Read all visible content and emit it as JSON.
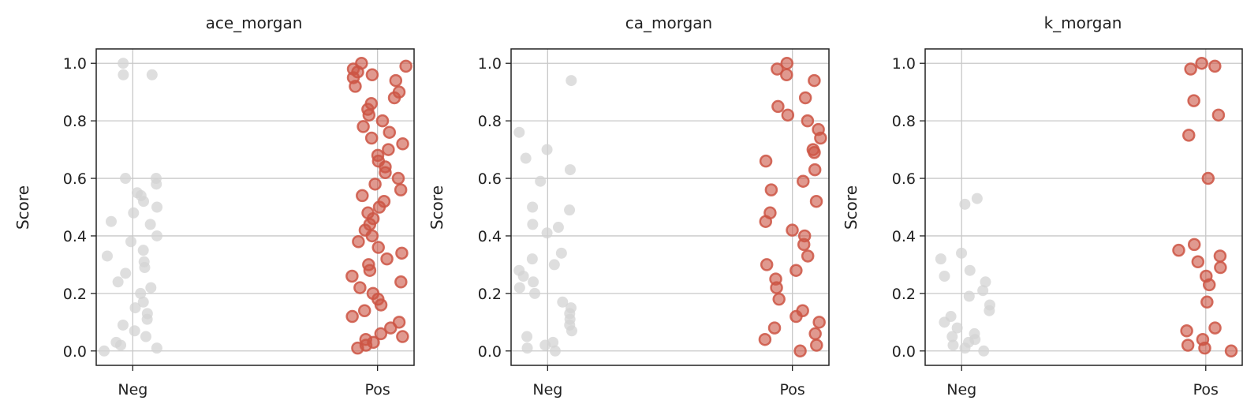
{
  "colors": {
    "neg": "#d3d3d3",
    "pos": "#cc5544",
    "grid": "#c8c8c8",
    "axis": "#222222"
  },
  "chart_data": [
    {
      "type": "scatter",
      "title": "ace_morgan",
      "ylabel": "Score",
      "categories": [
        "Neg",
        "Pos"
      ],
      "ylim": [
        -0.05,
        1.05
      ],
      "yticks": [
        "0.0",
        "0.2",
        "0.4",
        "0.6",
        "0.8",
        "1.0"
      ],
      "grid": true,
      "series": [
        {
          "values": [
            [
              0.0,
              0.0
            ],
            [
              0.0,
              0.01
            ],
            [
              0.0,
              0.02
            ],
            [
              0.0,
              0.03
            ],
            [
              0.0,
              0.05
            ],
            [
              0.0,
              0.07
            ],
            [
              0.0,
              0.09
            ],
            [
              0.0,
              0.11
            ],
            [
              0.0,
              0.13
            ],
            [
              0.0,
              0.15
            ],
            [
              0.0,
              0.17
            ],
            [
              0.0,
              0.2
            ],
            [
              0.0,
              0.22
            ],
            [
              0.0,
              0.24
            ],
            [
              0.0,
              0.27
            ],
            [
              0.0,
              0.29
            ],
            [
              0.0,
              0.31
            ],
            [
              0.0,
              0.33
            ],
            [
              0.0,
              0.35
            ],
            [
              0.0,
              0.38
            ],
            [
              0.0,
              0.4
            ],
            [
              0.0,
              0.44
            ],
            [
              0.0,
              0.45
            ],
            [
              0.0,
              0.48
            ],
            [
              0.0,
              0.5
            ],
            [
              0.0,
              0.52
            ],
            [
              0.0,
              0.54
            ],
            [
              0.0,
              0.55
            ],
            [
              0.0,
              0.58
            ],
            [
              0.0,
              0.6
            ],
            [
              0.0,
              0.6
            ],
            [
              0.0,
              0.96
            ],
            [
              0.0,
              0.96
            ],
            [
              0.0,
              1.0
            ]
          ]
        },
        {
          "values": [
            [
              1.0,
              0.01
            ],
            [
              1.0,
              0.02
            ],
            [
              1.0,
              0.03
            ],
            [
              1.0,
              0.04
            ],
            [
              1.0,
              0.05
            ],
            [
              1.0,
              0.06
            ],
            [
              1.0,
              0.08
            ],
            [
              1.0,
              0.1
            ],
            [
              1.0,
              0.12
            ],
            [
              1.0,
              0.14
            ],
            [
              1.0,
              0.16
            ],
            [
              1.0,
              0.18
            ],
            [
              1.0,
              0.2
            ],
            [
              1.0,
              0.22
            ],
            [
              1.0,
              0.24
            ],
            [
              1.0,
              0.26
            ],
            [
              1.0,
              0.28
            ],
            [
              1.0,
              0.3
            ],
            [
              1.0,
              0.32
            ],
            [
              1.0,
              0.34
            ],
            [
              1.0,
              0.36
            ],
            [
              1.0,
              0.38
            ],
            [
              1.0,
              0.4
            ],
            [
              1.0,
              0.42
            ],
            [
              1.0,
              0.44
            ],
            [
              1.0,
              0.46
            ],
            [
              1.0,
              0.48
            ],
            [
              1.0,
              0.5
            ],
            [
              1.0,
              0.52
            ],
            [
              1.0,
              0.54
            ],
            [
              1.0,
              0.56
            ],
            [
              1.0,
              0.58
            ],
            [
              1.0,
              0.6
            ],
            [
              1.0,
              0.62
            ],
            [
              1.0,
              0.64
            ],
            [
              1.0,
              0.66
            ],
            [
              1.0,
              0.68
            ],
            [
              1.0,
              0.7
            ],
            [
              1.0,
              0.72
            ],
            [
              1.0,
              0.74
            ],
            [
              1.0,
              0.76
            ],
            [
              1.0,
              0.78
            ],
            [
              1.0,
              0.8
            ],
            [
              1.0,
              0.82
            ],
            [
              1.0,
              0.84
            ],
            [
              1.0,
              0.86
            ],
            [
              1.0,
              0.88
            ],
            [
              1.0,
              0.9
            ],
            [
              1.0,
              0.92
            ],
            [
              1.0,
              0.94
            ],
            [
              1.0,
              0.95
            ],
            [
              1.0,
              0.96
            ],
            [
              1.0,
              0.97
            ],
            [
              1.0,
              0.98
            ],
            [
              1.0,
              0.99
            ],
            [
              1.0,
              1.0
            ]
          ]
        }
      ]
    },
    {
      "type": "scatter",
      "title": "ca_morgan",
      "ylabel": "Score",
      "categories": [
        "Neg",
        "Pos"
      ],
      "ylim": [
        -0.05,
        1.05
      ],
      "yticks": [
        "0.0",
        "0.2",
        "0.4",
        "0.6",
        "0.8",
        "1.0"
      ],
      "grid": true,
      "series": [
        {
          "values": [
            [
              0.0,
              0.0
            ],
            [
              0.0,
              0.01
            ],
            [
              0.0,
              0.02
            ],
            [
              0.0,
              0.03
            ],
            [
              0.0,
              0.05
            ],
            [
              0.0,
              0.07
            ],
            [
              0.0,
              0.09
            ],
            [
              0.0,
              0.11
            ],
            [
              0.0,
              0.13
            ],
            [
              0.0,
              0.15
            ],
            [
              0.0,
              0.17
            ],
            [
              0.0,
              0.2
            ],
            [
              0.0,
              0.22
            ],
            [
              0.0,
              0.24
            ],
            [
              0.0,
              0.26
            ],
            [
              0.0,
              0.28
            ],
            [
              0.0,
              0.3
            ],
            [
              0.0,
              0.32
            ],
            [
              0.0,
              0.34
            ],
            [
              0.0,
              0.41
            ],
            [
              0.0,
              0.43
            ],
            [
              0.0,
              0.44
            ],
            [
              0.0,
              0.49
            ],
            [
              0.0,
              0.5
            ],
            [
              0.0,
              0.59
            ],
            [
              0.0,
              0.63
            ],
            [
              0.0,
              0.67
            ],
            [
              0.0,
              0.7
            ],
            [
              0.0,
              0.76
            ],
            [
              0.0,
              0.94
            ]
          ]
        },
        {
          "values": [
            [
              1.0,
              0.0
            ],
            [
              1.0,
              0.02
            ],
            [
              1.0,
              0.04
            ],
            [
              1.0,
              0.06
            ],
            [
              1.0,
              0.08
            ],
            [
              1.0,
              0.1
            ],
            [
              1.0,
              0.12
            ],
            [
              1.0,
              0.14
            ],
            [
              1.0,
              0.18
            ],
            [
              1.0,
              0.22
            ],
            [
              1.0,
              0.25
            ],
            [
              1.0,
              0.28
            ],
            [
              1.0,
              0.3
            ],
            [
              1.0,
              0.33
            ],
            [
              1.0,
              0.37
            ],
            [
              1.0,
              0.4
            ],
            [
              1.0,
              0.42
            ],
            [
              1.0,
              0.45
            ],
            [
              1.0,
              0.48
            ],
            [
              1.0,
              0.52
            ],
            [
              1.0,
              0.56
            ],
            [
              1.0,
              0.59
            ],
            [
              1.0,
              0.63
            ],
            [
              1.0,
              0.66
            ],
            [
              1.0,
              0.69
            ],
            [
              1.0,
              0.7
            ],
            [
              1.0,
              0.74
            ],
            [
              1.0,
              0.77
            ],
            [
              1.0,
              0.8
            ],
            [
              1.0,
              0.82
            ],
            [
              1.0,
              0.85
            ],
            [
              1.0,
              0.88
            ],
            [
              1.0,
              0.94
            ],
            [
              1.0,
              0.96
            ],
            [
              1.0,
              0.98
            ],
            [
              1.0,
              1.0
            ]
          ]
        }
      ]
    },
    {
      "type": "scatter",
      "title": "k_morgan",
      "ylabel": "Score",
      "categories": [
        "Neg",
        "Pos"
      ],
      "ylim": [
        -0.05,
        1.05
      ],
      "yticks": [
        "0.0",
        "0.2",
        "0.4",
        "0.6",
        "0.8",
        "1.0"
      ],
      "grid": true,
      "series": [
        {
          "values": [
            [
              0.0,
              0.0
            ],
            [
              0.0,
              0.01
            ],
            [
              0.0,
              0.02
            ],
            [
              0.0,
              0.03
            ],
            [
              0.0,
              0.04
            ],
            [
              0.0,
              0.05
            ],
            [
              0.0,
              0.06
            ],
            [
              0.0,
              0.08
            ],
            [
              0.0,
              0.1
            ],
            [
              0.0,
              0.12
            ],
            [
              0.0,
              0.14
            ],
            [
              0.0,
              0.16
            ],
            [
              0.0,
              0.19
            ],
            [
              0.0,
              0.21
            ],
            [
              0.0,
              0.24
            ],
            [
              0.0,
              0.26
            ],
            [
              0.0,
              0.28
            ],
            [
              0.0,
              0.32
            ],
            [
              0.0,
              0.34
            ],
            [
              0.0,
              0.51
            ],
            [
              0.0,
              0.53
            ]
          ]
        },
        {
          "values": [
            [
              1.0,
              0.0
            ],
            [
              1.0,
              0.01
            ],
            [
              1.0,
              0.02
            ],
            [
              1.0,
              0.04
            ],
            [
              1.0,
              0.07
            ],
            [
              1.0,
              0.08
            ],
            [
              1.0,
              0.17
            ],
            [
              1.0,
              0.23
            ],
            [
              1.0,
              0.26
            ],
            [
              1.0,
              0.29
            ],
            [
              1.0,
              0.31
            ],
            [
              1.0,
              0.33
            ],
            [
              1.0,
              0.35
            ],
            [
              1.0,
              0.37
            ],
            [
              1.0,
              0.6
            ],
            [
              1.0,
              0.75
            ],
            [
              1.0,
              0.82
            ],
            [
              1.0,
              0.87
            ],
            [
              1.0,
              0.98
            ],
            [
              1.0,
              0.99
            ],
            [
              1.0,
              1.0
            ]
          ]
        }
      ]
    }
  ]
}
